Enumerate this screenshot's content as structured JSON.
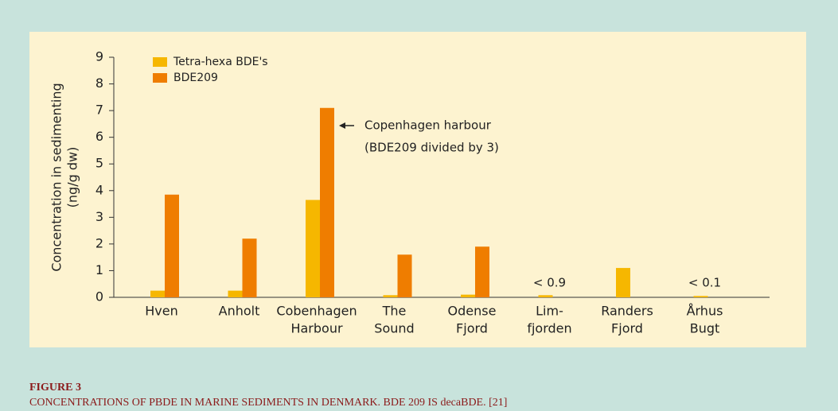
{
  "chart_data": {
    "type": "bar",
    "y_label": [
      "Concentration in sedimenting",
      "(ng/g dw)"
    ],
    "categories": [
      [
        "Hven"
      ],
      [
        "Anholt"
      ],
      [
        "Cobenhagen",
        "Harbour"
      ],
      [
        "The",
        "Sound"
      ],
      [
        "Odense",
        "Fjord"
      ],
      [
        "Lim-",
        "fjorden"
      ],
      [
        "Randers",
        "Fjord"
      ],
      [
        "Århus",
        "Bugt"
      ]
    ],
    "series": [
      {
        "name": "Tetra-hexa BDE's",
        "color": "#f6b700",
        "values": [
          0.25,
          0.25,
          3.65,
          0.08,
          0.1,
          0.08,
          1.1,
          0.05
        ]
      },
      {
        "name": "BDE209",
        "color": "#ef7d00",
        "values": [
          3.85,
          2.2,
          7.1,
          1.6,
          1.9,
          null,
          null,
          null
        ]
      }
    ],
    "annotations": [
      "< 0.9",
      "< 0.1"
    ],
    "callout": [
      "Copenhagen harbour",
      "(BDE209 divided by 3)"
    ],
    "ylim": [
      0,
      9
    ],
    "yticks": [
      0,
      1,
      2,
      3,
      4,
      5,
      6,
      7,
      8,
      9
    ],
    "figure_label": "FIGURE 3",
    "caption": "CONCENTRATIONS OF PBDE IN MARINE SEDIMENTS IN DENMARK. BDE 209 IS decaBDE. [21]"
  }
}
